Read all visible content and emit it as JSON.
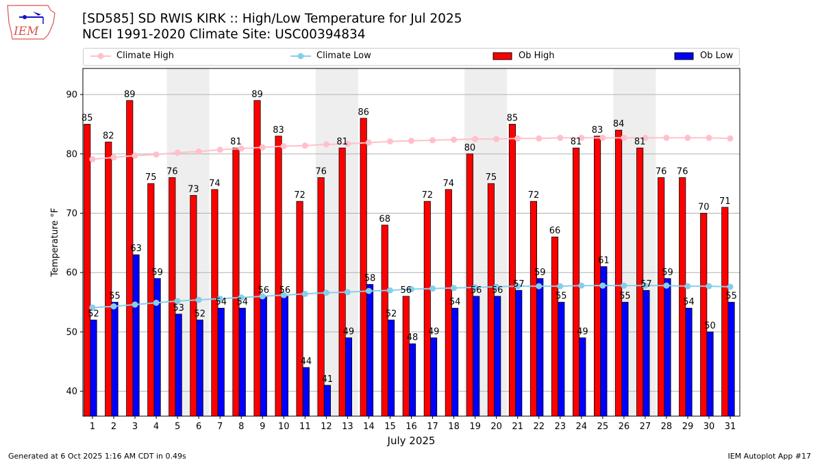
{
  "header": {
    "title_line1": "[SD585] SD RWIS KIRK :: High/Low Temperature for Jul 2025",
    "title_line2": "NCEI 1991-2020 Climate Site: USC00394834",
    "logo_text": "IEM"
  },
  "footer": {
    "left": "Generated at 6 Oct 2025 1:16 AM CDT in 0.49s",
    "right": "IEM Autoplot App #17"
  },
  "colors": {
    "ob_high": "#ff0000",
    "ob_low": "#0000ff",
    "climate_high": "#ffc0cb",
    "climate_low": "#87ceeb",
    "weekend": "#eeeeee"
  },
  "chart_data": {
    "type": "bar",
    "xlabel": "July 2025",
    "ylabel": "Temperature °F",
    "ylim": [
      35.8,
      94.4
    ],
    "xlim": [
      0.55,
      31.45
    ],
    "yticks": [
      40,
      50,
      60,
      70,
      80,
      90
    ],
    "grid": true,
    "legend_position": "top",
    "legend": [
      "Climate High",
      "Climate Low",
      "Ob High",
      "Ob Low"
    ],
    "weekend_shading_days": [
      [
        5,
        6
      ],
      [
        12,
        13
      ],
      [
        19,
        20
      ],
      [
        26,
        27
      ]
    ],
    "x": [
      1,
      2,
      3,
      4,
      5,
      6,
      7,
      8,
      9,
      10,
      11,
      12,
      13,
      14,
      15,
      16,
      17,
      18,
      19,
      20,
      21,
      22,
      23,
      24,
      25,
      26,
      27,
      28,
      29,
      30,
      31
    ],
    "series": [
      {
        "name": "Ob High",
        "values": [
          85,
          82,
          89,
          75,
          76,
          73,
          74,
          81,
          89,
          83,
          72,
          76,
          81,
          86,
          68,
          56,
          72,
          74,
          80,
          75,
          85,
          72,
          66,
          81,
          83,
          84,
          81,
          76,
          76,
          70,
          71
        ]
      },
      {
        "name": "Ob Low",
        "values": [
          52,
          55,
          63,
          59,
          53,
          52,
          54,
          54,
          56,
          56,
          44,
          41,
          49,
          58,
          52,
          48,
          49,
          54,
          56,
          56,
          57,
          59,
          55,
          49,
          61,
          55,
          57,
          59,
          54,
          50,
          55
        ]
      },
      {
        "name": "Climate High",
        "values": [
          79.1,
          79.4,
          79.7,
          79.9,
          80.2,
          80.4,
          80.7,
          80.9,
          81.1,
          81.3,
          81.4,
          81.6,
          81.7,
          81.9,
          82.1,
          82.2,
          82.3,
          82.4,
          82.5,
          82.5,
          82.6,
          82.6,
          82.7,
          82.7,
          82.7,
          82.7,
          82.7,
          82.7,
          82.7,
          82.7,
          82.6
        ]
      },
      {
        "name": "Climate Low",
        "values": [
          54.1,
          54.3,
          54.6,
          54.9,
          55.2,
          55.4,
          55.6,
          55.8,
          56.0,
          56.2,
          56.4,
          56.6,
          56.7,
          56.9,
          57.0,
          57.2,
          57.3,
          57.4,
          57.5,
          57.6,
          57.7,
          57.7,
          57.7,
          57.8,
          57.8,
          57.8,
          57.8,
          57.8,
          57.7,
          57.7,
          57.6
        ]
      }
    ]
  }
}
